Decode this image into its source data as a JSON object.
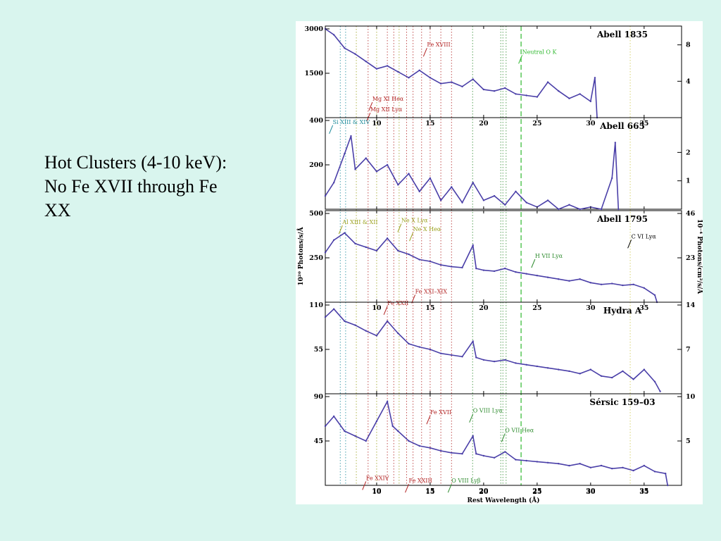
{
  "slide": {
    "text_lines": [
      "Hot Clusters (4-10 keV):",
      "No Fe XVII through Fe",
      "XX"
    ]
  },
  "colors": {
    "background": "#d9f5ee",
    "spectrum": "#4a3fa8",
    "fe_lines": "#b22222",
    "o_lines": "#2e8b2e",
    "ne_lines": "#9aa01c",
    "si_lines": "#1a8a9a",
    "neutral_o": "#2eb82e",
    "guide_lines": "#ccc84a"
  },
  "chart_data": {
    "type": "line",
    "x_axis": {
      "label": "Rest Wavelength (Å)",
      "range": [
        5.2,
        38.5
      ],
      "ticks": [
        10,
        15,
        20,
        25,
        30,
        35
      ],
      "tick_labels": [
        "10",
        "15",
        "20",
        "25",
        "30",
        "35"
      ]
    },
    "y_label_left": "10²⁰ Photons/s/Å",
    "y_label_right": "10⁻⁴ Photons/cm²/s/Å",
    "reference_lines": {
      "dotted_wavelengths": [
        6.6,
        7.1,
        8.1,
        9.2,
        10.0,
        11.0,
        11.6,
        12.1,
        12.8,
        13.4,
        14.2,
        15.0,
        16.0,
        17.0,
        18.97,
        21.6,
        21.8,
        22.1,
        33.7
      ],
      "neutral_o_edge": 23.5
    },
    "panels": [
      {
        "name": "Abell 1835",
        "left_ticks": [
          {
            "v": 3000,
            "label": "3000"
          },
          {
            "v": 1500,
            "label": "1500"
          }
        ],
        "left_max": 3000,
        "right_ticks": [
          {
            "label": "8",
            "frac": 0.82
          },
          {
            "label": "4",
            "frac": 0.41
          }
        ],
        "bottom_ticks": true,
        "series": [
          {
            "x": 5.2,
            "y": 3000
          },
          {
            "x": 6,
            "y": 2800
          },
          {
            "x": 7,
            "y": 2350
          },
          {
            "x": 8,
            "y": 2150
          },
          {
            "x": 9,
            "y": 1900
          },
          {
            "x": 10,
            "y": 1650
          },
          {
            "x": 11,
            "y": 1750
          },
          {
            "x": 12,
            "y": 1550
          },
          {
            "x": 13,
            "y": 1350
          },
          {
            "x": 14,
            "y": 1600
          },
          {
            "x": 15,
            "y": 1350
          },
          {
            "x": 16,
            "y": 1150
          },
          {
            "x": 17,
            "y": 1200
          },
          {
            "x": 18,
            "y": 1050
          },
          {
            "x": 19,
            "y": 1300
          },
          {
            "x": 20,
            "y": 950
          },
          {
            "x": 21,
            "y": 900
          },
          {
            "x": 22,
            "y": 1000
          },
          {
            "x": 23,
            "y": 800
          },
          {
            "x": 24,
            "y": 750
          },
          {
            "x": 25,
            "y": 700
          },
          {
            "x": 26,
            "y": 1200
          },
          {
            "x": 27,
            "y": 900
          },
          {
            "x": 28,
            "y": 650
          },
          {
            "x": 29,
            "y": 800
          },
          {
            "x": 30,
            "y": 550
          },
          {
            "x": 30.4,
            "y": 1350
          },
          {
            "x": 30.6,
            "y": 0
          }
        ],
        "annotations": [
          {
            "text": "Fe XVIII",
            "x": 14.7,
            "yf": 0.8,
            "color": "fe_lines"
          },
          {
            "text": "Neutral O K",
            "x": 23.6,
            "yf": 0.72,
            "color": "neutral_o"
          },
          {
            "text": "Mg XI Heα",
            "x": 9.6,
            "yf": 0.19,
            "color": "fe_lines"
          },
          {
            "text": "Mg XII Lyα",
            "x": 9.4,
            "yf": 0.07,
            "color": "fe_lines"
          },
          {
            "text": "Si XIII & XIV",
            "x": 5.9,
            "yf": -0.07,
            "color": "si_lines"
          }
        ]
      },
      {
        "name": "Abell 665",
        "left_ticks": [
          {
            "v": 400,
            "label": "400"
          },
          {
            "v": 200,
            "label": "200"
          }
        ],
        "left_max": 400,
        "right_ticks": [
          {
            "label": "2",
            "frac": 0.64
          },
          {
            "label": "1",
            "frac": 0.32
          }
        ],
        "bottom_ticks": false,
        "series": [
          {
            "x": 5.2,
            "y": 60
          },
          {
            "x": 6,
            "y": 120
          },
          {
            "x": 7,
            "y": 250
          },
          {
            "x": 7.6,
            "y": 330
          },
          {
            "x": 8,
            "y": 180
          },
          {
            "x": 9,
            "y": 230
          },
          {
            "x": 10,
            "y": 170
          },
          {
            "x": 11,
            "y": 200
          },
          {
            "x": 12,
            "y": 110
          },
          {
            "x": 13,
            "y": 160
          },
          {
            "x": 14,
            "y": 80
          },
          {
            "x": 15,
            "y": 140
          },
          {
            "x": 16,
            "y": 40
          },
          {
            "x": 17,
            "y": 100
          },
          {
            "x": 18,
            "y": 30
          },
          {
            "x": 19,
            "y": 120
          },
          {
            "x": 20,
            "y": 40
          },
          {
            "x": 21,
            "y": 60
          },
          {
            "x": 22,
            "y": 20
          },
          {
            "x": 23,
            "y": 80
          },
          {
            "x": 24,
            "y": 30
          },
          {
            "x": 25,
            "y": 10
          },
          {
            "x": 26,
            "y": 40
          },
          {
            "x": 27,
            "y": 0
          },
          {
            "x": 28,
            "y": 20
          },
          {
            "x": 29,
            "y": 0
          },
          {
            "x": 30,
            "y": 10
          },
          {
            "x": 31,
            "y": 0
          },
          {
            "x": 32,
            "y": 140
          },
          {
            "x": 32.3,
            "y": 300
          },
          {
            "x": 32.6,
            "y": 0
          }
        ],
        "annotations": []
      },
      {
        "name": "Abell 1795",
        "left_ticks": [
          {
            "v": 500,
            "label": "500"
          },
          {
            "v": 250,
            "label": "250"
          }
        ],
        "left_max": 500,
        "right_ticks": [
          {
            "label": "46",
            "frac": 1.0
          },
          {
            "label": "23",
            "frac": 0.5
          }
        ],
        "bottom_ticks": true,
        "series": [
          {
            "x": 5.2,
            "y": 280
          },
          {
            "x": 6,
            "y": 350
          },
          {
            "x": 7,
            "y": 390
          },
          {
            "x": 8,
            "y": 330
          },
          {
            "x": 9,
            "y": 310
          },
          {
            "x": 10,
            "y": 290
          },
          {
            "x": 11,
            "y": 360
          },
          {
            "x": 12,
            "y": 290
          },
          {
            "x": 13,
            "y": 270
          },
          {
            "x": 14,
            "y": 240
          },
          {
            "x": 15,
            "y": 230
          },
          {
            "x": 16,
            "y": 210
          },
          {
            "x": 17,
            "y": 200
          },
          {
            "x": 18,
            "y": 195
          },
          {
            "x": 19,
            "y": 320
          },
          {
            "x": 19.3,
            "y": 190
          },
          {
            "x": 20,
            "y": 180
          },
          {
            "x": 21,
            "y": 175
          },
          {
            "x": 22,
            "y": 190
          },
          {
            "x": 23,
            "y": 170
          },
          {
            "x": 24,
            "y": 160
          },
          {
            "x": 25,
            "y": 150
          },
          {
            "x": 26,
            "y": 140
          },
          {
            "x": 27,
            "y": 130
          },
          {
            "x": 28,
            "y": 120
          },
          {
            "x": 29,
            "y": 130
          },
          {
            "x": 30,
            "y": 110
          },
          {
            "x": 31,
            "y": 100
          },
          {
            "x": 32,
            "y": 105
          },
          {
            "x": 33,
            "y": 95
          },
          {
            "x": 34,
            "y": 100
          },
          {
            "x": 35,
            "y": 80
          },
          {
            "x": 36,
            "y": 40
          },
          {
            "x": 36.2,
            "y": 0
          }
        ],
        "annotations": [
          {
            "text": "Al XIII & XII",
            "x": 6.8,
            "yf": 0.88,
            "color": "ne_lines"
          },
          {
            "text": "Ne X Lyα",
            "x": 12.3,
            "yf": 0.9,
            "color": "ne_lines"
          },
          {
            "text": "Ne X Heα",
            "x": 13.4,
            "yf": 0.8,
            "color": "ne_lines"
          },
          {
            "text": "H VII Lyα",
            "x": 24.8,
            "yf": 0.5,
            "color": "o_lines"
          },
          {
            "text": "C VI Lyα",
            "x": 33.8,
            "yf": 0.72,
            "color": "#000000"
          },
          {
            "text": "Fe XXI–XIX",
            "x": 13.6,
            "yf": 0.1,
            "color": "fe_lines"
          },
          {
            "text": "Fe XXII",
            "x": 11.0,
            "yf": -0.03,
            "color": "fe_lines"
          }
        ]
      },
      {
        "name": "Hydra A",
        "left_ticks": [
          {
            "v": 110,
            "label": "110"
          },
          {
            "v": 55,
            "label": "55"
          }
        ],
        "left_max": 110,
        "right_ticks": [
          {
            "label": "14",
            "frac": 1.0
          },
          {
            "label": "7",
            "frac": 0.5
          }
        ],
        "bottom_ticks": false,
        "series": [
          {
            "x": 5.2,
            "y": 95
          },
          {
            "x": 6,
            "y": 105
          },
          {
            "x": 7,
            "y": 90
          },
          {
            "x": 8,
            "y": 85
          },
          {
            "x": 9,
            "y": 78
          },
          {
            "x": 10,
            "y": 72
          },
          {
            "x": 11,
            "y": 90
          },
          {
            "x": 12,
            "y": 75
          },
          {
            "x": 13,
            "y": 62
          },
          {
            "x": 14,
            "y": 58
          },
          {
            "x": 15,
            "y": 55
          },
          {
            "x": 16,
            "y": 50
          },
          {
            "x": 17,
            "y": 48
          },
          {
            "x": 18,
            "y": 46
          },
          {
            "x": 19,
            "y": 65
          },
          {
            "x": 19.3,
            "y": 45
          },
          {
            "x": 20,
            "y": 42
          },
          {
            "x": 21,
            "y": 40
          },
          {
            "x": 22,
            "y": 42
          },
          {
            "x": 23,
            "y": 38
          },
          {
            "x": 24,
            "y": 36
          },
          {
            "x": 25,
            "y": 34
          },
          {
            "x": 26,
            "y": 32
          },
          {
            "x": 27,
            "y": 30
          },
          {
            "x": 28,
            "y": 28
          },
          {
            "x": 29,
            "y": 25
          },
          {
            "x": 30,
            "y": 30
          },
          {
            "x": 31,
            "y": 22
          },
          {
            "x": 32,
            "y": 20
          },
          {
            "x": 33,
            "y": 28
          },
          {
            "x": 34,
            "y": 18
          },
          {
            "x": 35,
            "y": 30
          },
          {
            "x": 36,
            "y": 15
          },
          {
            "x": 36.5,
            "y": 3
          }
        ],
        "annotations": []
      },
      {
        "name": "Sérsic 159–03",
        "left_ticks": [
          {
            "v": 90,
            "label": "90"
          },
          {
            "v": 45,
            "label": "45"
          }
        ],
        "left_max": 90,
        "right_ticks": [
          {
            "label": "10",
            "frac": 1.0
          },
          {
            "label": "5",
            "frac": 0.5
          }
        ],
        "bottom_ticks": true,
        "series": [
          {
            "x": 5.2,
            "y": 60
          },
          {
            "x": 6,
            "y": 70
          },
          {
            "x": 7,
            "y": 55
          },
          {
            "x": 8,
            "y": 50
          },
          {
            "x": 9,
            "y": 45
          },
          {
            "x": 10,
            "y": 65
          },
          {
            "x": 11,
            "y": 85
          },
          {
            "x": 11.5,
            "y": 60
          },
          {
            "x": 12,
            "y": 55
          },
          {
            "x": 13,
            "y": 45
          },
          {
            "x": 14,
            "y": 40
          },
          {
            "x": 15,
            "y": 38
          },
          {
            "x": 16,
            "y": 35
          },
          {
            "x": 17,
            "y": 33
          },
          {
            "x": 18,
            "y": 32
          },
          {
            "x": 19,
            "y": 50
          },
          {
            "x": 19.3,
            "y": 32
          },
          {
            "x": 20,
            "y": 30
          },
          {
            "x": 21,
            "y": 28
          },
          {
            "x": 22,
            "y": 34
          },
          {
            "x": 23,
            "y": 26
          },
          {
            "x": 24,
            "y": 25
          },
          {
            "x": 25,
            "y": 24
          },
          {
            "x": 26,
            "y": 23
          },
          {
            "x": 27,
            "y": 22
          },
          {
            "x": 28,
            "y": 20
          },
          {
            "x": 29,
            "y": 22
          },
          {
            "x": 30,
            "y": 18
          },
          {
            "x": 31,
            "y": 20
          },
          {
            "x": 32,
            "y": 17
          },
          {
            "x": 33,
            "y": 18
          },
          {
            "x": 34,
            "y": 15
          },
          {
            "x": 35,
            "y": 20
          },
          {
            "x": 36,
            "y": 14
          },
          {
            "x": 37,
            "y": 12
          },
          {
            "x": 37.2,
            "y": 0
          }
        ],
        "annotations": [
          {
            "text": "Fe XVII",
            "x": 15.0,
            "yf": 0.8,
            "color": "fe_lines"
          },
          {
            "text": "O VIII Lyα",
            "x": 19.0,
            "yf": 0.82,
            "color": "o_lines"
          },
          {
            "text": "O VII Heα",
            "x": 22.0,
            "yf": 0.6,
            "color": "o_lines"
          },
          {
            "text": "Fe XXIV",
            "x": 9.0,
            "yf": 0.06,
            "color": "fe_lines"
          },
          {
            "text": "Fe XXIII",
            "x": 13.0,
            "yf": 0.03,
            "color": "fe_lines"
          },
          {
            "text": "O VIII Lyβ",
            "x": 17.0,
            "yf": 0.03,
            "color": "o_lines"
          }
        ]
      }
    ]
  }
}
